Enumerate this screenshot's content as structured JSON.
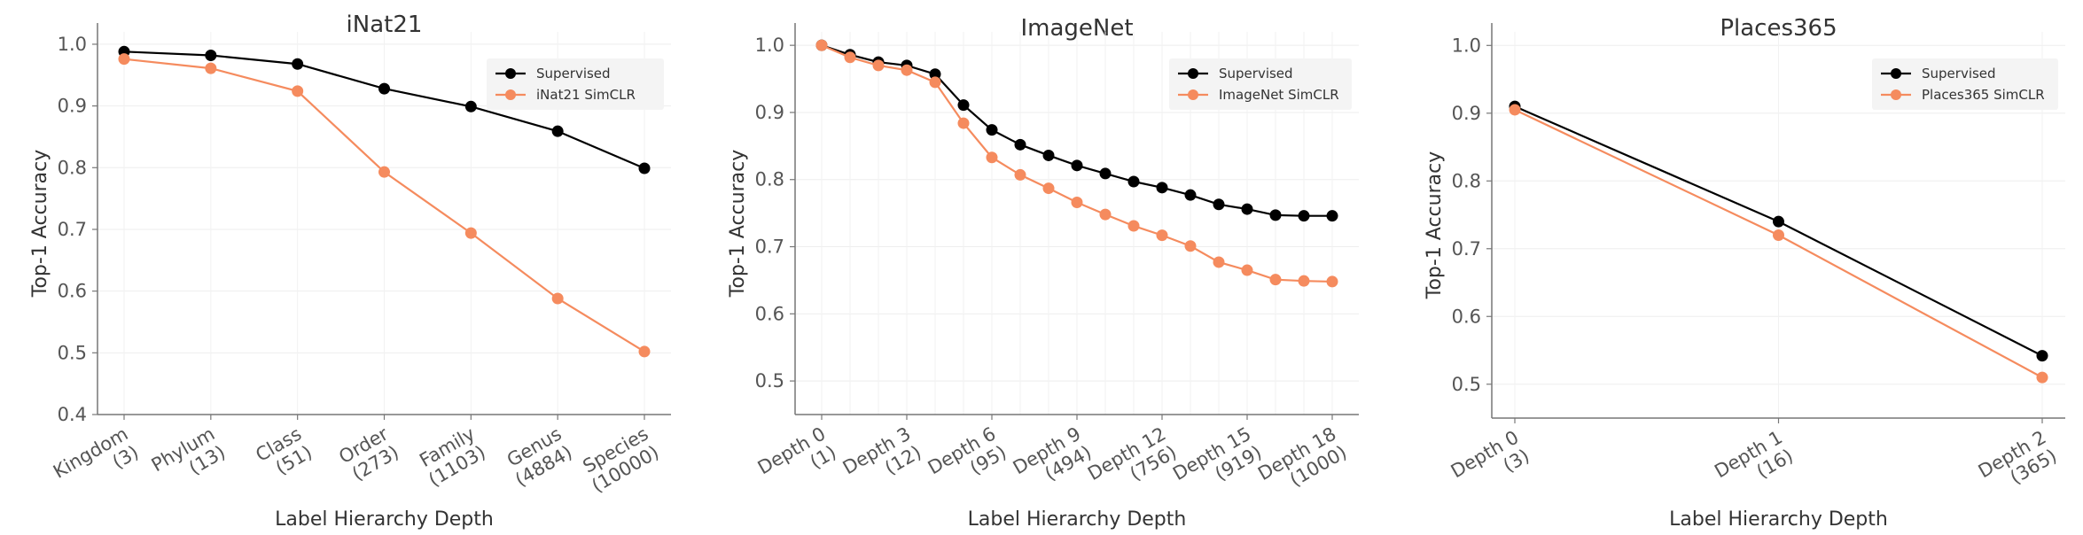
{
  "chart_data": [
    {
      "type": "line",
      "title": "iNat21",
      "xlabel": "Label Hierarchy Depth",
      "ylabel": "Top-1 Accuracy",
      "ylim": [
        0.4,
        1.02
      ],
      "yticks": [
        "0.4",
        "0.5",
        "0.6",
        "0.7",
        "0.8",
        "0.9",
        "1.0"
      ],
      "categories": [
        [
          "Kingdom",
          "(3)"
        ],
        [
          "Phylum",
          "(13)"
        ],
        [
          "Class",
          "(51)"
        ],
        [
          "Order",
          "(273)"
        ],
        [
          "Family",
          "(1103)"
        ],
        [
          "Genus",
          "(4884)"
        ],
        [
          "Species",
          "(10000)"
        ]
      ],
      "series": [
        {
          "name": "Supervised",
          "color": "#000000",
          "values": [
            0.988,
            0.982,
            0.968,
            0.928,
            0.899,
            0.859,
            0.799
          ]
        },
        {
          "name": "iNat21 SimCLR",
          "color": "#F58B5E",
          "values": [
            0.976,
            0.961,
            0.924,
            0.793,
            0.694,
            0.588,
            0.502
          ]
        }
      ],
      "legend": "top-right",
      "grid": true
    },
    {
      "type": "line",
      "title": "ImageNet",
      "xlabel": "Label Hierarchy Depth",
      "ylabel": "Top-1 Accuracy",
      "ylim": [
        0.45,
        1.02
      ],
      "yticks": [
        "0.5",
        "0.6",
        "0.7",
        "0.8",
        "0.9",
        "1.0"
      ],
      "categories": [
        [
          "Depth 0",
          "(1)"
        ],
        [
          "",
          ""
        ],
        [
          "",
          ""
        ],
        [
          "Depth 3",
          "(12)"
        ],
        [
          "",
          ""
        ],
        [
          "",
          ""
        ],
        [
          "Depth 6",
          "(95)"
        ],
        [
          "",
          ""
        ],
        [
          "",
          ""
        ],
        [
          "Depth 9",
          "(494)"
        ],
        [
          "",
          ""
        ],
        [
          "",
          ""
        ],
        [
          "Depth 12",
          "(756)"
        ],
        [
          "",
          ""
        ],
        [
          "",
          ""
        ],
        [
          "Depth 15",
          "(919)"
        ],
        [
          "",
          ""
        ],
        [
          "",
          ""
        ],
        [
          "Depth 18",
          "(1000)"
        ]
      ],
      "series": [
        {
          "name": "Supervised",
          "color": "#000000",
          "values": [
            1.0,
            0.986,
            0.975,
            0.97,
            0.957,
            0.911,
            0.874,
            0.852,
            0.836,
            0.821,
            0.809,
            0.797,
            0.788,
            0.777,
            0.763,
            0.756,
            0.747,
            0.746,
            0.746
          ]
        },
        {
          "name": "ImageNet SimCLR",
          "color": "#F58B5E",
          "values": [
            1.0,
            0.982,
            0.97,
            0.963,
            0.945,
            0.884,
            0.833,
            0.807,
            0.787,
            0.766,
            0.748,
            0.731,
            0.717,
            0.701,
            0.677,
            0.665,
            0.651,
            0.649,
            0.648
          ]
        }
      ],
      "legend": "top-right",
      "grid": true
    },
    {
      "type": "line",
      "title": "Places365",
      "xlabel": "Label Hierarchy Depth",
      "ylabel": "Top-1 Accuracy",
      "ylim": [
        0.45,
        1.02
      ],
      "yticks": [
        "0.5",
        "0.6",
        "0.7",
        "0.8",
        "0.9",
        "1.0"
      ],
      "categories": [
        [
          "Depth 0",
          "(3)"
        ],
        [
          "Depth 1",
          "(16)"
        ],
        [
          "Depth 2",
          "(365)"
        ]
      ],
      "series": [
        {
          "name": "Supervised",
          "color": "#000000",
          "values": [
            0.91,
            0.74,
            0.542
          ]
        },
        {
          "name": "Places365 SimCLR",
          "color": "#F58B5E",
          "values": [
            0.905,
            0.72,
            0.51
          ]
        }
      ],
      "legend": "top-right",
      "grid": true
    }
  ]
}
